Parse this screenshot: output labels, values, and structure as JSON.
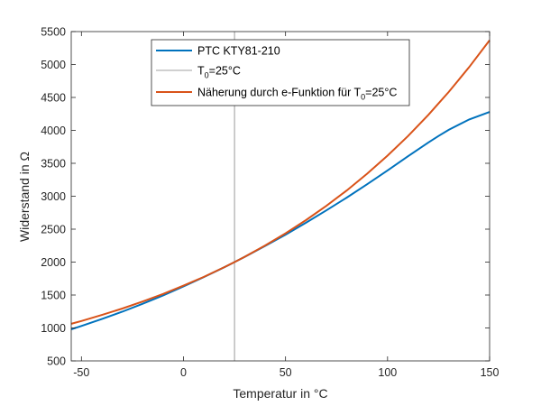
{
  "chart_data": {
    "type": "line",
    "xlabel": "Temperatur in °C",
    "ylabel": "Widerstand in Ω",
    "xlim": [
      -55,
      150
    ],
    "ylim": [
      500,
      5500
    ],
    "xticks": [
      -50,
      0,
      50,
      100,
      150
    ],
    "yticks": [
      500,
      1000,
      1500,
      2000,
      2500,
      3000,
      3500,
      4000,
      4500,
      5000,
      5500
    ],
    "grid": false,
    "legend_position": "top-center",
    "x": [
      -55,
      -50,
      -40,
      -30,
      -20,
      -10,
      0,
      10,
      20,
      25,
      30,
      40,
      50,
      60,
      70,
      80,
      90,
      100,
      110,
      120,
      125,
      130,
      140,
      150
    ],
    "series": [
      {
        "name": "PTC KTY81-210",
        "name_parts": [
          "PTC KTY81-210",
          "",
          ""
        ],
        "color": "#0072BD",
        "values": [
          980,
          1030,
          1135,
          1247,
          1367,
          1495,
          1630,
          1772,
          1922,
          2000,
          2080,
          2245,
          2417,
          2597,
          2785,
          2980,
          3182,
          3392,
          3607,
          3817,
          3915,
          4008,
          4166,
          4280
        ]
      },
      {
        "name": "T0=25°C",
        "name_parts": [
          "T",
          "0",
          "=25°C"
        ],
        "color": "#808080",
        "type": "vertical-line",
        "x_value": 25
      },
      {
        "name": "Näherung durch e-Funktion für T0=25°C",
        "name_parts": [
          "Näherung durch e-Funktion für T",
          "0",
          "=25°C"
        ],
        "color": "#D95319",
        "values": [
          1063,
          1106,
          1197,
          1295,
          1402,
          1517,
          1642,
          1776,
          1923,
          2000,
          2081,
          2252,
          2437,
          2637,
          2854,
          3088,
          3342,
          3617,
          3914,
          4236,
          4410,
          4584,
          4961,
          5369
        ]
      }
    ]
  }
}
